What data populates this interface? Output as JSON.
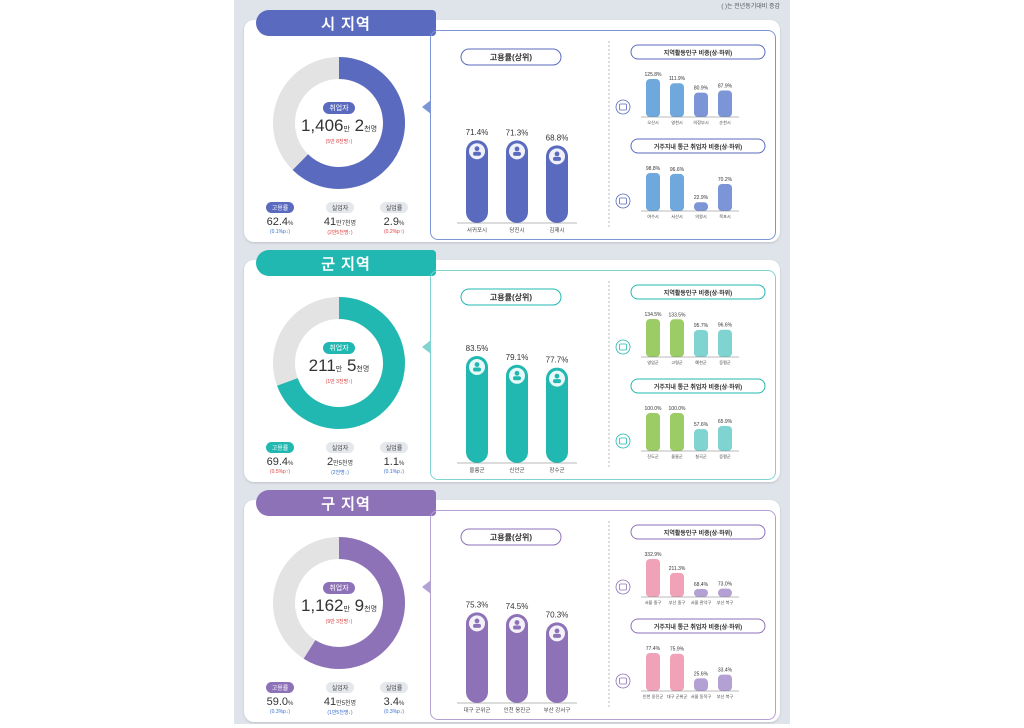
{
  "source_note": "( )는 전년동기대비 증감",
  "labels": {
    "employed": "취업자",
    "emp_rate": "고용률",
    "unemployed": "실업자",
    "unemp_rate": "실업률"
  },
  "chart_data": [
    {
      "type": "bar",
      "region": "시 지역",
      "color": "#5a6bbf",
      "light": "#7c95d6",
      "accent2": "#6fa8dc",
      "donut_fraction": 0.624,
      "employed": {
        "main": "1,406",
        "unit1": "만",
        "sub": "2",
        "unit2": "천명",
        "change": "(5만 8천명↑)"
      },
      "stats": [
        {
          "label": "고용률",
          "value": "62.4",
          "unit": "%",
          "change": "(0.1%p↓)",
          "dir": "down"
        },
        {
          "label": "실업자",
          "value": "41",
          "unit": "만7천명",
          "change": "(2만5천명↑)",
          "dir": "up"
        },
        {
          "label": "실업률",
          "value": "2.9",
          "unit": "%",
          "change": "(0.2%p↑)",
          "dir": "up"
        }
      ],
      "main_chart": {
        "title": "고용률(상위)",
        "categories": [
          "서귀포시",
          "당진시",
          "김제시"
        ],
        "values": [
          71.4,
          71.3,
          68.8
        ],
        "labels": [
          "71.4%",
          "71.3%",
          "68.8%"
        ]
      },
      "sub1": {
        "title": "지역활동인구 비중(상·하위)",
        "categories": [
          "오산시",
          "영천시",
          "의정부시",
          "순천시"
        ],
        "values": [
          125.8,
          111.9,
          80.9,
          87.9
        ],
        "labels": [
          "125.8%",
          "111.9%",
          "80.9%",
          "87.9%"
        ]
      },
      "sub2": {
        "title": "거주지내 통근 취업자 비중(상·하위)",
        "categories": [
          "여수시",
          "서산시",
          "의왕시",
          "목포시"
        ],
        "values": [
          98.8,
          96.6,
          22.9,
          70.2
        ],
        "labels": [
          "98.8%",
          "96.6%",
          "22.9%",
          "70.2%"
        ]
      }
    },
    {
      "type": "bar",
      "region": "군 지역",
      "color": "#22b8b2",
      "light": "#7fd4d2",
      "accent2": "#9ccc65",
      "donut_fraction": 0.694,
      "employed": {
        "main": "211",
        "unit1": "만",
        "sub": "5",
        "unit2": "천명",
        "change": "(1만 3천명↑)"
      },
      "stats": [
        {
          "label": "고용률",
          "value": "69.4",
          "unit": "%",
          "change": "(0.5%p↑)",
          "dir": "up"
        },
        {
          "label": "실업자",
          "value": "2",
          "unit": "만5천명",
          "change": "(2천명↓)",
          "dir": "down"
        },
        {
          "label": "실업률",
          "value": "1.1",
          "unit": "%",
          "change": "(0.1%p↓)",
          "dir": "down"
        }
      ],
      "main_chart": {
        "title": "고용률(상위)",
        "categories": [
          "울릉군",
          "신안군",
          "장수군"
        ],
        "values": [
          83.5,
          79.1,
          77.7
        ],
        "labels": [
          "83.5%",
          "79.1%",
          "77.7%"
        ]
      },
      "sub1": {
        "title": "지역활동인구 비중(상·하위)",
        "categories": [
          "영암군",
          "고령군",
          "예천군",
          "증평군"
        ],
        "values": [
          134.5,
          133.5,
          95.7,
          96.6
        ],
        "labels": [
          "134.5%",
          "133.5%",
          "95.7%",
          "96.6%"
        ]
      },
      "sub2": {
        "title": "거주지내 통근 취업자 비중(상·하위)",
        "categories": [
          "진도군",
          "울릉군",
          "칠곡군",
          "증평군"
        ],
        "values": [
          100.0,
          100.0,
          57.6,
          65.9
        ],
        "labels": [
          "100.0%",
          "100.0%",
          "57.6%",
          "65.9%"
        ]
      }
    },
    {
      "type": "bar",
      "region": "구 지역",
      "color": "#8e72b8",
      "light": "#b4a1d3",
      "accent2": "#f0a3b8",
      "donut_fraction": 0.59,
      "employed": {
        "main": "1,162",
        "unit1": "만",
        "sub": "9",
        "unit2": "천명",
        "change": "(9만 3천명↑)"
      },
      "stats": [
        {
          "label": "고용률",
          "value": "59.0",
          "unit": "%",
          "change": "(0.3%p↓)",
          "dir": "down"
        },
        {
          "label": "실업자",
          "value": "41",
          "unit": "만5천명",
          "change": "(1만5천명↓)",
          "dir": "down"
        },
        {
          "label": "실업률",
          "value": "3.4",
          "unit": "%",
          "change": "(0.3%p↓)",
          "dir": "down"
        }
      ],
      "main_chart": {
        "title": "고용률(상위)",
        "categories": [
          "대구 군위군",
          "인천 옹진군",
          "부산 강서구"
        ],
        "values": [
          75.3,
          74.5,
          70.3
        ],
        "labels": [
          "75.3%",
          "74.5%",
          "70.3%"
        ]
      },
      "sub1": {
        "title": "지역활동인구 비중(상·하위)",
        "categories": [
          "서울 중구",
          "부산 중구",
          "서울 관악구",
          "부산 북구"
        ],
        "values": [
          332.9,
          211.3,
          68.4,
          73.0
        ],
        "labels": [
          "332.9%",
          "211.3%",
          "68.4%",
          "73.0%"
        ]
      },
      "sub2": {
        "title": "거주지내 통근 취업자 비중(상·하위)",
        "categories": [
          "인천 옹진군",
          "대구 군위군",
          "서울 동작구",
          "부산 북구"
        ],
        "values": [
          77.4,
          75.9,
          25.6,
          33.4
        ],
        "labels": [
          "77.4%",
          "75.9%",
          "25.6%",
          "33.4%"
        ]
      }
    }
  ]
}
